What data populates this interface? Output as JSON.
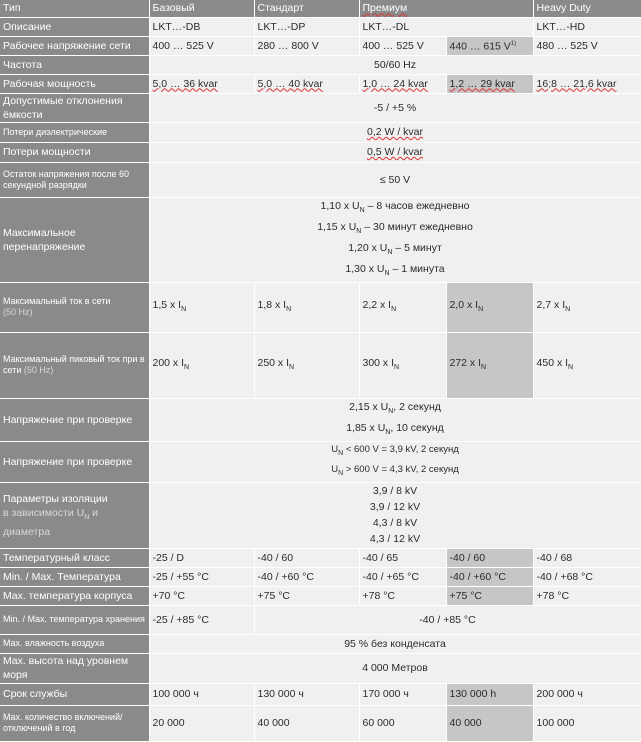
{
  "header": {
    "type": "Тип",
    "basic": "Базовый",
    "standard": "Стандарт",
    "premium": "Премиум",
    "heavy": "Heavy Duty"
  },
  "rows": {
    "description": {
      "label": "Описание",
      "basic": "LKT…-DB",
      "standard": "LKT…-DP",
      "premium": "LKT…-DL",
      "heavy": "LKT…-HD"
    },
    "voltage": {
      "label": "Рабочее напряжение сети",
      "basic": "400 … 525 V",
      "standard": "280 … 800 V",
      "premium": "400 … 525 V",
      "premium_alt": "440 … 615 V",
      "premium_alt_note": "1)",
      "heavy": "480 … 525 V"
    },
    "frequency": {
      "label": "Частота",
      "value": "50/60 Hz"
    },
    "power": {
      "label": "Рабочая мощность",
      "basic": "5,0 … 36 kvar",
      "standard": "5,0 … 40 kvar",
      "premium": "1,0 … 24 kvar",
      "premium_alt": "1,2 … 29 kvar",
      "heavy": "16;8 … 21,6 kvar"
    },
    "tolerance": {
      "label": "Допустимые отклонения ёмкости",
      "value": "-5 / +5 %"
    },
    "dielectric_loss": {
      "label": "Потери диэлектрические",
      "value": "0,2 W / kvar"
    },
    "power_loss": {
      "label": "Потери мощности",
      "value": "0,5 W / kvar"
    },
    "residual": {
      "label": "Остаток напряжения после 60 секундной разрядки",
      "value": "≤ 50 V"
    },
    "overvoltage": {
      "label": "Максимальное перенапряжение",
      "lines": [
        {
          "pre": "1,10 x U",
          "sub": "N",
          "post": " – 8 часов ежедневно"
        },
        {
          "pre": "1,15 x U",
          "sub": "N",
          "post": " – 30 минут ежедневно"
        },
        {
          "pre": "1,20 x U",
          "sub": "N",
          "post": " – 5 минут"
        },
        {
          "pre": "1,30 x U",
          "sub": "N",
          "post": " – 1 минута"
        }
      ]
    },
    "max_current": {
      "label": "Максимальный ток в сети",
      "label_dim": "(50 Hz)",
      "basic": "1,5 x I",
      "standard": "1,8 x I",
      "premium": "2,2 x I",
      "premium_alt": "2,0 x I",
      "heavy": "2,7 x I",
      "sub": "N"
    },
    "peak_current": {
      "label": "Максимальный пиковый ток при в сети",
      "label_dim": "(50 Hz)",
      "basic": "200 x I",
      "standard": "250 x I",
      "premium": "300 x I",
      "premium_alt": "272 x I",
      "heavy": "450 x I",
      "sub": "N"
    },
    "test_voltage_1": {
      "label": "Напряжение при проверке",
      "lines": [
        {
          "pre": "2,15 x U",
          "sub": "N",
          "post": ", 2 секунд"
        },
        {
          "pre": "1,85 x U",
          "sub": "N",
          "post": ", 10 секунд"
        }
      ]
    },
    "test_voltage_2": {
      "label": "Напряжение при проверке",
      "lines": [
        {
          "pre": "U",
          "sub": "N",
          "post": " < 600 V = 3,9 kV, 2 секунд"
        },
        {
          "pre": "U",
          "sub": "N",
          "post": " > 600 V = 4,3 kV, 2 секунд"
        }
      ]
    },
    "insulation": {
      "label": "Параметры изоляции",
      "label_dim_pre": "в зависимости U",
      "label_dim_sub": "N",
      "label_dim_post": " и диаметра",
      "lines": [
        "3,9 / 8 kV",
        "3,9 / 12 kV",
        "4,3 / 8 kV",
        "4,3 / 12 kV"
      ]
    },
    "temp_class": {
      "label": "Температурный класс",
      "basic": "-25 / D",
      "standard": "-40 / 60",
      "premium": "-40 / 65",
      "premium_alt": "-40 / 60",
      "heavy": "-40 / 68"
    },
    "minmax_temp": {
      "label": "Min. / Max. Температура",
      "basic": "-25 / +55 °C",
      "standard": "-40 / +60 °C",
      "premium": "-40 / +65 °C",
      "premium_alt": "-40 / +60 °C",
      "heavy": "-40 / +68 °C"
    },
    "case_temp": {
      "label": "Max. температура корпуса",
      "basic": "+70 °C",
      "standard": "+75 °C",
      "premium": "+78 °C",
      "premium_alt": "+75 °C",
      "heavy": "+78 °C"
    },
    "storage_temp": {
      "label": "Min. / Max. температура хранения",
      "basic": "-25 / +85 °C",
      "rest": "-40 / +85 °C"
    },
    "humidity": {
      "label": "Max. влажность воздуха",
      "value": "95 % без конденсата"
    },
    "altitude": {
      "label": "Max. высота над уровнем моря",
      "value": "4 000 Метров"
    },
    "lifetime": {
      "label": "Срок службы",
      "basic": "100 000 ч",
      "standard": "130 000 ч",
      "premium": "170 000 ч",
      "premium_alt": "130 000 h",
      "heavy": "200 000 ч"
    },
    "switching": {
      "label": "Max. количество включений/отключений в год",
      "basic": "20 000",
      "standard": "40 000",
      "premium": "60 000",
      "premium_alt": "40 000",
      "heavy": "100 000"
    }
  }
}
